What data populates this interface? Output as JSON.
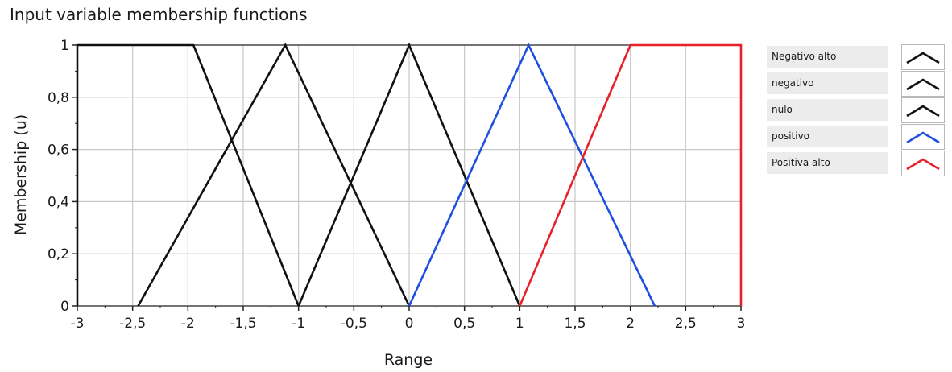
{
  "panel": {
    "title": "Input variable membership functions"
  },
  "chart_data": {
    "type": "line",
    "title": "",
    "xlabel": "Range",
    "ylabel": "Membership (u)",
    "xlim": [
      -3,
      3
    ],
    "ylim": [
      0,
      1
    ],
    "x_ticks": [
      "-3",
      "-2,5",
      "-2",
      "-1,5",
      "-1",
      "-0,5",
      "0",
      "0,5",
      "1",
      "1,5",
      "2",
      "2,5",
      "3"
    ],
    "y_ticks": [
      "0",
      "0,2",
      "0,4",
      "0,6",
      "0,8",
      "1"
    ],
    "grid": true,
    "legend_position": "right",
    "series": [
      {
        "name": "Negativo alto",
        "color": "#111111",
        "x": [
          -3,
          -3,
          -1.95,
          -1
        ],
        "y": [
          0,
          1,
          1,
          0
        ]
      },
      {
        "name": "negativo",
        "color": "#111111",
        "x": [
          -2.45,
          -1.12,
          0
        ],
        "y": [
          0,
          1,
          0
        ]
      },
      {
        "name": "nulo",
        "color": "#111111",
        "x": [
          -1,
          0,
          1
        ],
        "y": [
          0,
          1,
          0
        ]
      },
      {
        "name": "positivo",
        "color": "#1f4fe0",
        "x": [
          0,
          1.08,
          2.22
        ],
        "y": [
          0,
          1,
          0
        ]
      },
      {
        "name": "Positiva alto",
        "color": "#e8202a",
        "x": [
          1,
          2,
          3,
          3
        ],
        "y": [
          0,
          1,
          1,
          0
        ]
      }
    ]
  }
}
